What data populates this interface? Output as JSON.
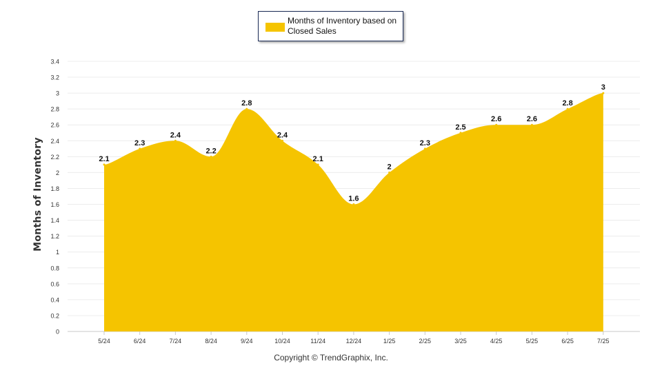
{
  "chart_data": {
    "type": "area",
    "categories": [
      "5/24",
      "6/24",
      "7/24",
      "8/24",
      "9/24",
      "10/24",
      "11/24",
      "12/24",
      "1/25",
      "2/25",
      "3/25",
      "4/25",
      "5/25",
      "6/25",
      "7/25"
    ],
    "series": [
      {
        "name": "Months of Inventory based on Closed Sales",
        "values": [
          2.1,
          2.3,
          2.4,
          2.2,
          2.8,
          2.4,
          2.1,
          1.6,
          2,
          2.3,
          2.5,
          2.6,
          2.6,
          2.8,
          3
        ],
        "data_labels": [
          "2.1",
          "2.3",
          "2.4",
          "2.2",
          "2.8",
          "2.4",
          "2.1",
          "1.6",
          "2",
          "2.3",
          "2.5",
          "2.6",
          "2.6",
          "2.8",
          "3"
        ]
      }
    ],
    "y_ticks": [
      "0",
      "0.2",
      "0.4",
      "0.6",
      "0.8",
      "1",
      "1.2",
      "1.4",
      "1.6",
      "1.8",
      "2",
      "2.2",
      "2.4",
      "2.6",
      "2.8",
      "3",
      "3.2",
      "3.4"
    ],
    "ylim": [
      0,
      3.4
    ],
    "ylabel": "Months of Inventory",
    "xlabel": "",
    "grid": true,
    "legend_position": "top-center",
    "fill_color": "#f5c400"
  },
  "legend": {
    "label": "Months of Inventory based on Closed Sales"
  },
  "footer": {
    "copyright": "Copyright © TrendGraphix, Inc."
  }
}
